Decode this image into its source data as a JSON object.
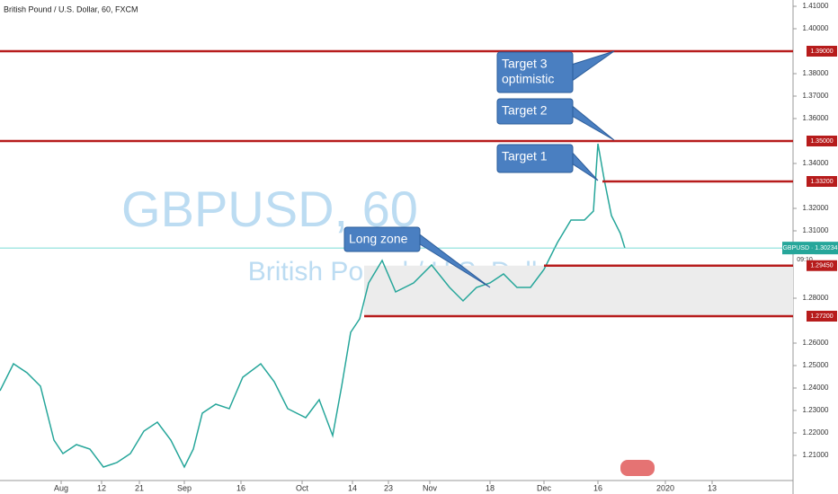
{
  "chart_data": {
    "type": "line",
    "header": "British Pound / U.S. Dollar, 60, FXCM",
    "watermark": "GBPUSD, 60",
    "watermark_sub": "British Pound / U.S. Dollar",
    "xlim": [
      0,
      882
    ],
    "ylim": [
      1.1988,
      1.4128
    ],
    "xticks": [
      {
        "value": 68,
        "label": "Aug"
      },
      {
        "value": 113,
        "label": "12"
      },
      {
        "value": 155,
        "label": "21"
      },
      {
        "value": 205,
        "label": "Sep"
      },
      {
        "value": 268,
        "label": "16"
      },
      {
        "value": 336,
        "label": "Oct"
      },
      {
        "value": 392,
        "label": "14"
      },
      {
        "value": 432,
        "label": "23"
      },
      {
        "value": 478,
        "label": "Nov"
      },
      {
        "value": 545,
        "label": "18"
      },
      {
        "value": 605,
        "label": "Dec"
      },
      {
        "value": 665,
        "label": "16"
      },
      {
        "value": 740,
        "label": "2020"
      },
      {
        "value": 792,
        "label": "13"
      }
    ],
    "yticks": [
      {
        "value": 1.21,
        "label": "1.21000"
      },
      {
        "value": 1.22,
        "label": "1.22000"
      },
      {
        "value": 1.23,
        "label": "1.23000"
      },
      {
        "value": 1.24,
        "label": "1.24000"
      },
      {
        "value": 1.25,
        "label": "1.25000"
      },
      {
        "value": 1.26,
        "label": "1.26000"
      },
      {
        "value": 1.28,
        "label": "1.28000"
      },
      {
        "value": 1.31,
        "label": "1.31000"
      },
      {
        "value": 1.32,
        "label": "1.32000"
      },
      {
        "value": 1.34,
        "label": "1.34000"
      },
      {
        "value": 1.36,
        "label": "1.36000"
      },
      {
        "value": 1.37,
        "label": "1.37000"
      },
      {
        "value": 1.38,
        "label": "1.38000"
      },
      {
        "value": 1.4,
        "label": "1.40000"
      },
      {
        "value": 1.41,
        "label": "1.41000"
      }
    ],
    "series": [
      {
        "name": "GBPUSD",
        "color": "#26a69a",
        "x": [
          0,
          15,
          30,
          45,
          60,
          70,
          85,
          100,
          115,
          130,
          145,
          160,
          175,
          190,
          205,
          215,
          225,
          240,
          255,
          270,
          290,
          305,
          320,
          340,
          355,
          370,
          380,
          390,
          400,
          410,
          425,
          440,
          460,
          480,
          500,
          515,
          530,
          545,
          560,
          575,
          590,
          605,
          620,
          635,
          650,
          660,
          665,
          672,
          680,
          690,
          695
        ],
        "values": [
          1.2388,
          1.2508,
          1.2468,
          1.2408,
          1.2168,
          1.2108,
          1.2148,
          1.2128,
          1.2048,
          1.2068,
          1.2108,
          1.2208,
          1.2248,
          1.2168,
          1.2048,
          1.2128,
          1.2288,
          1.2328,
          1.2308,
          1.2448,
          1.2508,
          1.2428,
          1.2308,
          1.2268,
          1.2348,
          1.2188,
          1.2408,
          1.2648,
          1.2708,
          1.2868,
          1.2968,
          1.2828,
          1.2868,
          1.2948,
          1.2848,
          1.2788,
          1.2848,
          1.2868,
          1.2908,
          1.2848,
          1.2848,
          1.2928,
          1.3048,
          1.3148,
          1.3148,
          1.3188,
          1.3488,
          1.3328,
          1.3168,
          1.3088,
          1.3023
        ]
      }
    ],
    "levels": [
      {
        "value": 1.39,
        "label": "1.39000",
        "from": 0
      },
      {
        "value": 1.35,
        "label": "1.35000",
        "from": 0
      },
      {
        "value": 1.332,
        "label": "1.33200",
        "from": 670
      },
      {
        "value": 1.2945,
        "label": "1.29450",
        "from": 605
      },
      {
        "value": 1.272,
        "label": "1.27200",
        "from": 405
      }
    ],
    "current_price": {
      "value": 1.30234,
      "label": "GBPUSD · 1.30234"
    },
    "countdown": "09:10",
    "annotations": [
      {
        "lines": [
          "Target 3",
          "optimistic"
        ]
      },
      {
        "lines": [
          "Target 2"
        ]
      },
      {
        "lines": [
          "Target 1"
        ]
      },
      {
        "lines": [
          "Long zone"
        ]
      }
    ]
  }
}
